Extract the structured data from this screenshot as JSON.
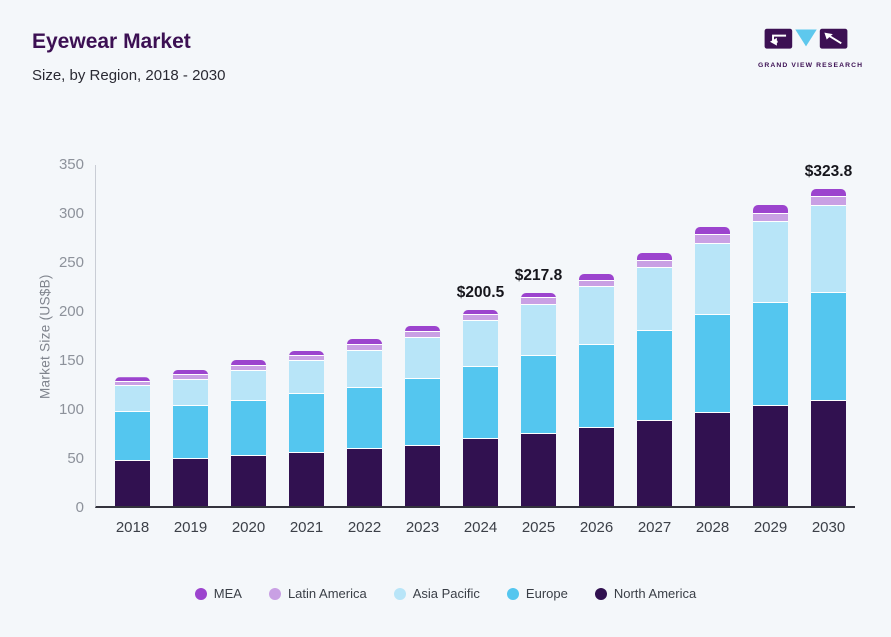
{
  "header": {
    "title": "Eyewear Market",
    "subtitle": "Size, by Region, 2018 - 2030"
  },
  "logo": {
    "text": "GRAND VIEW RESEARCH",
    "brand_dark": "#3c1053",
    "brand_blue": "#5ec8ed"
  },
  "chart_data": {
    "type": "bar",
    "stacked": true,
    "title": "Eyewear Market Size, by Region, 2018 - 2030",
    "ylabel": "Market Size (US$B)",
    "ylim": [
      0,
      350
    ],
    "yticks": [
      0,
      50,
      100,
      150,
      200,
      250,
      300,
      350
    ],
    "grid": false,
    "legend_position": "bottom",
    "categories": [
      "2018",
      "2019",
      "2020",
      "2021",
      "2022",
      "2023",
      "2024",
      "2025",
      "2026",
      "2027",
      "2028",
      "2029",
      "2030"
    ],
    "series": [
      {
        "name": "North America",
        "color": "#311150",
        "values": [
          46.2,
          48.0,
          51.3,
          54.1,
          58.2,
          61.6,
          68.4,
          73.8,
          79.6,
          86.4,
          94.9,
          101.7,
          107.4
        ]
      },
      {
        "name": "Europe",
        "color": "#54c6ef",
        "values": [
          49.4,
          53.7,
          55.5,
          60.2,
          62.2,
          68.0,
          73.1,
          78.9,
          85.0,
          91.8,
          99.7,
          105.4,
          109.9
        ]
      },
      {
        "name": "Asia Pacific",
        "color": "#b8e5f8",
        "values": [
          26.5,
          27.2,
          31.3,
          33.3,
          38.1,
          41.8,
          46.9,
          52.7,
          58.5,
          64.6,
          72.7,
          82.3,
          88.5
        ]
      },
      {
        "name": "Latin America",
        "color": "#c9a0e4",
        "values": [
          4.1,
          5.1,
          5.1,
          5.1,
          5.5,
          5.8,
          6.2,
          6.8,
          6.1,
          6.9,
          8.9,
          8.6,
          9.1
        ]
      },
      {
        "name": "MEA",
        "color": "#9c44ce",
        "values": [
          5.3,
          5.0,
          5.5,
          5.7,
          6.2,
          6.4,
          5.9,
          5.6,
          7.5,
          8.2,
          8.0,
          9.0,
          8.9
        ]
      }
    ],
    "legend_order": [
      "MEA",
      "Latin America",
      "Asia Pacific",
      "Europe",
      "North America"
    ],
    "annotations": [
      {
        "category": "2024",
        "text": "$200.5"
      },
      {
        "category": "2025",
        "text": "$217.8"
      },
      {
        "category": "2030",
        "text": "$323.8"
      }
    ]
  }
}
